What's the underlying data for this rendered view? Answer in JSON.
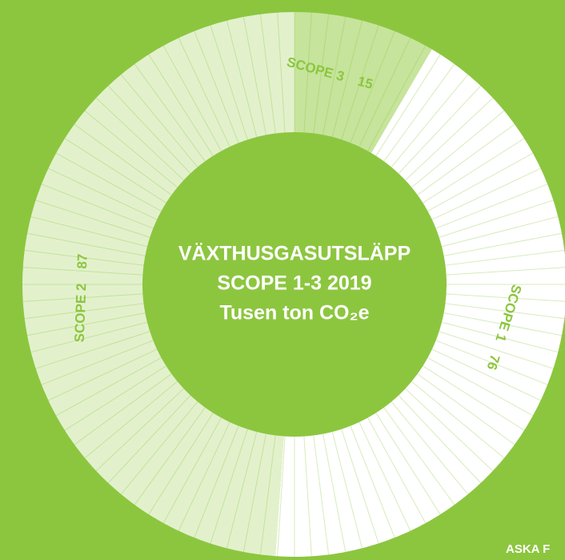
{
  "chart_data": {
    "type": "pie",
    "donut": true,
    "title_lines": [
      "VÄXTHUSGASUTSLÄPP",
      "SCOPE 1-3 2019",
      "Tusen ton CO₂e"
    ],
    "categories": [
      "SCOPE 3",
      "SCOPE 1",
      "SCOPE 2"
    ],
    "values": [
      15,
      76,
      87
    ],
    "colors": [
      "#c6e49c",
      "#ffffff",
      "#e2f1cc"
    ],
    "background": "#8cc63f",
    "footer": "ASKA F"
  }
}
